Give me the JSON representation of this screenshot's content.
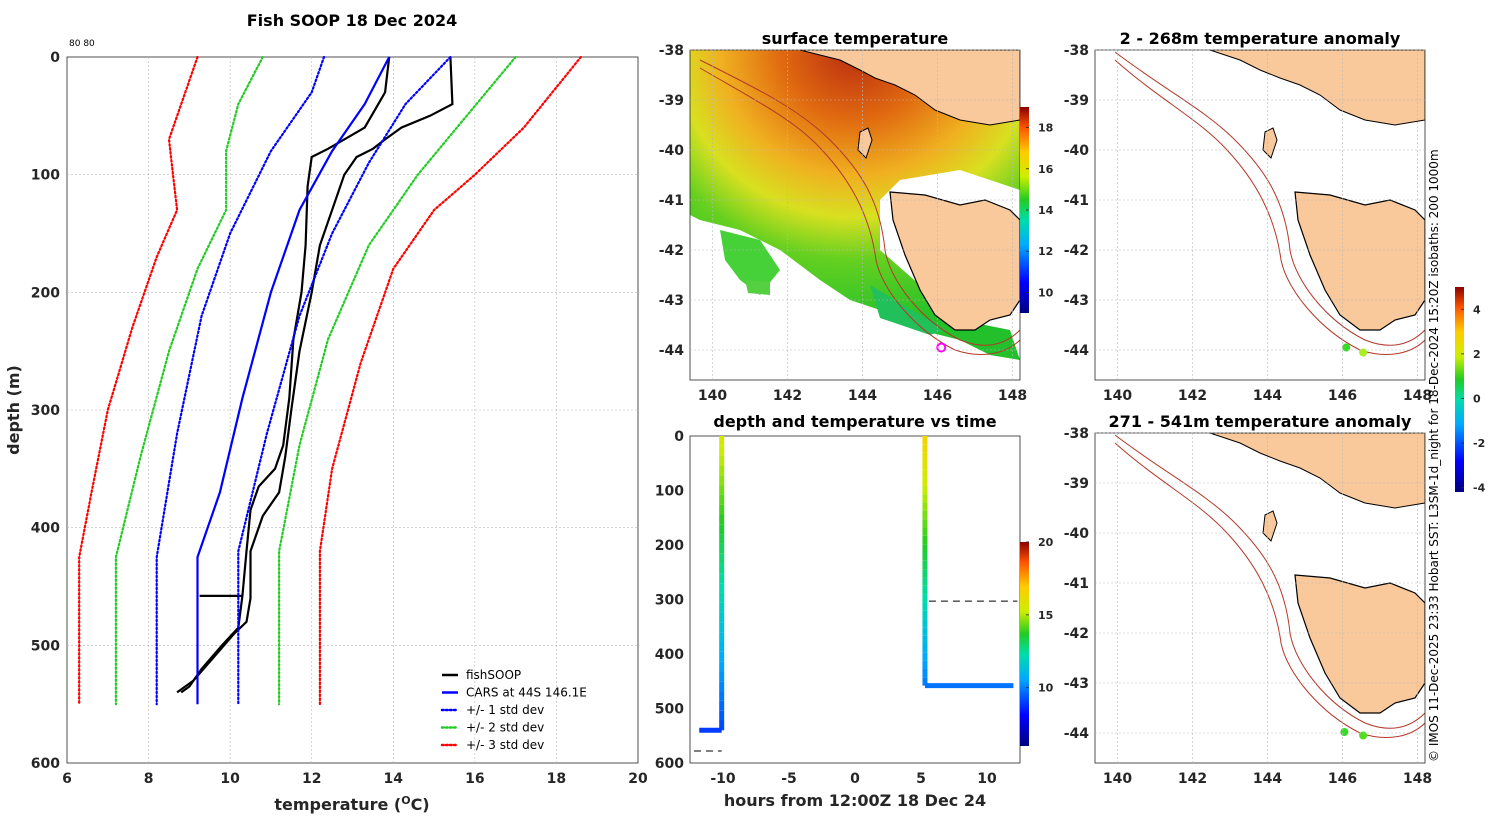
{
  "credit": "© IMOS 11-Dec-2025 23:33 Hobart SST: L3SM-1d_night for 18-Dec-2024 15:20Z isobaths: 200  1000m",
  "colors": {
    "land": "#f9c99b",
    "coast": "#000000",
    "isobath": "#b23a2a",
    "profile": "#000000",
    "cars": "#0000ff",
    "std1": "#0000ff",
    "std2": "#22cc22",
    "std3": "#ff0000"
  },
  "chart_data": [
    {
      "id": "profile",
      "type": "line",
      "title": "Fish SOOP 18 Dec 2024",
      "corner_label": "80 80",
      "xlabel": "temperature (",
      "xlabel_sup": "O",
      "xlabel_end": "C)",
      "ylabel": "depth (m)",
      "xlim": [
        6,
        20
      ],
      "ylim": [
        0,
        600
      ],
      "xticks": [
        6,
        8,
        10,
        12,
        14,
        16,
        18,
        20
      ],
      "yticks": [
        0,
        100,
        200,
        300,
        400,
        500,
        600
      ],
      "series": [
        {
          "name": "fishSOOP",
          "style": "solid",
          "color": "#000000",
          "points": [
            [
              13.9,
              0
            ],
            [
              13.8,
              30
            ],
            [
              13.3,
              60
            ],
            [
              12.8,
              70
            ],
            [
              12.4,
              78
            ],
            [
              12.0,
              85
            ],
            [
              11.9,
              110
            ],
            [
              11.85,
              160
            ],
            [
              11.75,
              200
            ],
            [
              11.55,
              240
            ],
            [
              11.45,
              290
            ],
            [
              11.3,
              330
            ],
            [
              11.1,
              350
            ],
            [
              10.7,
              365
            ],
            [
              10.5,
              385
            ],
            [
              10.4,
              420
            ],
            [
              10.3,
              458
            ],
            [
              9.25,
              458
            ],
            [
              10.3,
              458
            ],
            [
              10.2,
              485
            ],
            [
              9.8,
              500
            ],
            [
              9.3,
              520
            ],
            [
              9.0,
              535
            ],
            [
              8.8,
              540
            ]
          ]
        },
        {
          "name": "fishSOOP_b",
          "style": "solid",
          "color": "#000000",
          "points": [
            [
              15.4,
              0
            ],
            [
              15.45,
              40
            ],
            [
              14.9,
              50
            ],
            [
              14.2,
              60
            ],
            [
              13.8,
              70
            ],
            [
              13.5,
              78
            ],
            [
              13.1,
              85
            ],
            [
              12.8,
              100
            ],
            [
              12.6,
              120
            ],
            [
              12.2,
              160
            ],
            [
              12.0,
              200
            ],
            [
              11.7,
              250
            ],
            [
              11.5,
              300
            ],
            [
              11.35,
              340
            ],
            [
              11.2,
              370
            ],
            [
              10.8,
              390
            ],
            [
              10.5,
              420
            ],
            [
              10.5,
              460
            ],
            [
              10.4,
              480
            ],
            [
              10.1,
              490
            ],
            [
              9.6,
              510
            ],
            [
              9.1,
              530
            ],
            [
              8.7,
              540
            ]
          ]
        },
        {
          "name": "CARS at 44S 146.1E",
          "style": "solid",
          "color": "#0000ff",
          "points": [
            [
              13.9,
              0
            ],
            [
              13.3,
              40
            ],
            [
              12.5,
              80
            ],
            [
              11.7,
              130
            ],
            [
              11.0,
              200
            ],
            [
              10.3,
              290
            ],
            [
              9.75,
              370
            ],
            [
              9.2,
              425
            ],
            [
              9.2,
              550
            ]
          ]
        },
        {
          "name": "+/- 1 std dev",
          "style": "dotted",
          "color": "#0000ff",
          "points": [
            [
              15.4,
              0
            ],
            [
              14.3,
              40
            ],
            [
              13.4,
              90
            ],
            [
              12.5,
              150
            ],
            [
              11.7,
              220
            ],
            [
              10.9,
              320
            ],
            [
              10.2,
              420
            ],
            [
              10.2,
              550
            ]
          ]
        },
        {
          "name": "+/- 1 std dev (lower)",
          "style": "dotted",
          "color": "#0000ff",
          "points": [
            [
              12.3,
              0
            ],
            [
              12.0,
              30
            ],
            [
              11.0,
              80
            ],
            [
              10.0,
              150
            ],
            [
              9.3,
              220
            ],
            [
              8.7,
              320
            ],
            [
              8.2,
              425
            ],
            [
              8.2,
              550
            ]
          ]
        },
        {
          "name": "+/- 2 std dev",
          "style": "dotted",
          "color": "#22cc22",
          "points": [
            [
              17.0,
              0
            ],
            [
              15.8,
              50
            ],
            [
              14.6,
              100
            ],
            [
              13.4,
              160
            ],
            [
              12.4,
              240
            ],
            [
              11.7,
              330
            ],
            [
              11.2,
              420
            ],
            [
              11.2,
              550
            ]
          ]
        },
        {
          "name": "+/- 2 std dev (lower)",
          "style": "dotted",
          "color": "#22cc22",
          "points": [
            [
              10.8,
              0
            ],
            [
              10.2,
              40
            ],
            [
              9.9,
              80
            ],
            [
              9.9,
              130
            ],
            [
              9.2,
              180
            ],
            [
              8.5,
              250
            ],
            [
              7.8,
              340
            ],
            [
              7.2,
              425
            ],
            [
              7.2,
              550
            ]
          ]
        },
        {
          "name": "+/- 3 std dev",
          "style": "dotted",
          "color": "#ff0000",
          "points": [
            [
              18.6,
              0
            ],
            [
              17.2,
              60
            ],
            [
              16.0,
              100
            ],
            [
              15.0,
              130
            ],
            [
              14.0,
              180
            ],
            [
              13.2,
              260
            ],
            [
              12.5,
              350
            ],
            [
              12.2,
              420
            ],
            [
              12.2,
              550
            ]
          ]
        },
        {
          "name": "+/- 3 std dev (lower)",
          "style": "dotted",
          "color": "#ff0000",
          "points": [
            [
              9.2,
              0
            ],
            [
              8.8,
              40
            ],
            [
              8.5,
              70
            ],
            [
              8.6,
              100
            ],
            [
              8.7,
              130
            ],
            [
              8.2,
              170
            ],
            [
              7.6,
              230
            ],
            [
              7.0,
              300
            ],
            [
              6.6,
              370
            ],
            [
              6.3,
              425
            ],
            [
              6.3,
              550
            ]
          ]
        }
      ],
      "legend": [
        {
          "label": "fishSOOP",
          "color": "#000000",
          "style": "solid"
        },
        {
          "label": "CARS at 44S 146.1E",
          "color": "#0000ff",
          "style": "solid"
        },
        {
          "label": "+/- 1 std dev",
          "color": "#0000ff",
          "style": "dotted"
        },
        {
          "label": "+/- 2 std dev",
          "color": "#22cc22",
          "style": "dotted"
        },
        {
          "label": "+/- 3 std dev",
          "color": "#ff0000",
          "style": "dotted"
        }
      ]
    },
    {
      "id": "sst",
      "type": "heatmap",
      "title": "surface temperature",
      "xlim": [
        139.4,
        148.2
      ],
      "ylim": [
        -44.6,
        -38
      ],
      "xticks": [
        140,
        142,
        144,
        146,
        148
      ],
      "yticks": [
        -38,
        -39,
        -40,
        -41,
        -42,
        -43,
        -44
      ],
      "colorbar": {
        "min": 9,
        "max": 19,
        "ticks": [
          10,
          12,
          14,
          16,
          18
        ]
      },
      "marker": {
        "lon": 146.1,
        "lat": -43.95,
        "color": "#ff00ff"
      }
    },
    {
      "id": "timeseries",
      "type": "scatter",
      "title": "depth and temperature vs time",
      "xlabel": "hours from 12:00Z 18 Dec 24",
      "xlim": [
        -12.5,
        12.5
      ],
      "ylim": [
        0,
        600
      ],
      "xticks": [
        -10,
        -5,
        0,
        5,
        10
      ],
      "yticks": [
        0,
        100,
        200,
        300,
        400,
        500,
        600
      ],
      "colorbar": {
        "min": 6,
        "max": 20,
        "ticks": [
          10,
          15,
          20
        ]
      },
      "casts": [
        {
          "t_down": -10.1,
          "max_depth": 540,
          "bottom_t0": -11.8,
          "surface_temp": 15.5,
          "bottom_temp": 9
        },
        {
          "t_down": 5.3,
          "max_depth": 458,
          "bottom_t0": 12.0,
          "surface_temp": 16.5,
          "bottom_temp": 9.8
        }
      ],
      "dashes": [
        {
          "t0": -12.2,
          "t1": -10.1,
          "depth": 578
        },
        {
          "t0": 5.6,
          "t1": 12.3,
          "depth": 303
        }
      ]
    },
    {
      "id": "anom1",
      "type": "map",
      "title": "2 - 268m temperature anomaly",
      "xlim": [
        139.4,
        148.2
      ],
      "ylim": [
        -44.6,
        -38
      ],
      "xticks": [
        140,
        142,
        144,
        146,
        148
      ],
      "yticks": [
        -38,
        -39,
        -40,
        -41,
        -42,
        -43,
        -44
      ],
      "colorbar": {
        "min": -4.2,
        "max": 5,
        "ticks": [
          -4,
          -2,
          0,
          2,
          4
        ]
      },
      "points": [
        {
          "lon": 146.1,
          "lat": -43.95,
          "color": "#33dd22"
        },
        {
          "lon": 146.55,
          "lat": -44.05,
          "color": "#aaee22"
        }
      ]
    },
    {
      "id": "anom2",
      "type": "map",
      "title": "271 - 541m temperature anomaly",
      "xlim": [
        139.4,
        148.2
      ],
      "ylim": [
        -44.6,
        -38
      ],
      "xticks": [
        140,
        142,
        144,
        146,
        148
      ],
      "yticks": [
        -38,
        -39,
        -40,
        -41,
        -42,
        -43,
        -44
      ],
      "points": [
        {
          "lon": 146.05,
          "lat": -43.98,
          "color": "#33dd22"
        },
        {
          "lon": 146.55,
          "lat": -44.05,
          "color": "#55dd22"
        }
      ]
    }
  ]
}
